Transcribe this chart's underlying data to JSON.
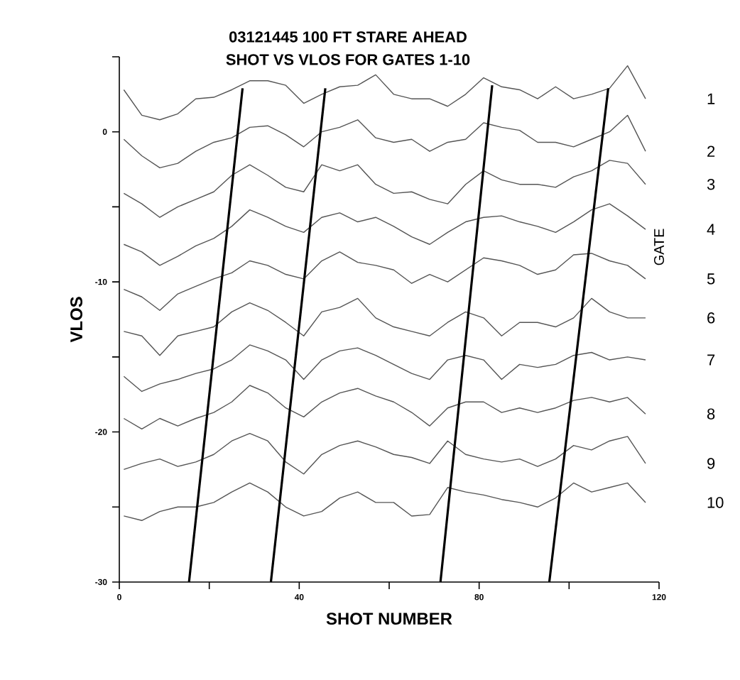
{
  "chart_data": {
    "type": "line",
    "title": "03121445 100 FT STARE AHEAD",
    "subtitle": "SHOT VS VLOS FOR GATES 1-10",
    "xlabel": "SHOT NUMBER",
    "ylabel": "VLOS",
    "legend_title": "GATE",
    "marker": "none",
    "xlim": [
      0,
      120
    ],
    "ylim": [
      -30,
      5
    ],
    "xticks": [
      0,
      {
        "value": 20,
        "label": null
      },
      40,
      {
        "value": 60,
        "label": null
      },
      80,
      {
        "value": 100,
        "label": null
      },
      120
    ],
    "yticks": [
      -30,
      {
        "value": -25,
        "label": null
      },
      -20,
      {
        "value": -15,
        "label": null
      },
      -10,
      {
        "value": -5,
        "label": null
      },
      0,
      {
        "value": 5,
        "label": null
      }
    ],
    "x": [
      1,
      5,
      9,
      13,
      17,
      21,
      25,
      29,
      33,
      37,
      41,
      45,
      49,
      53,
      57,
      61,
      65,
      69,
      73,
      77,
      81,
      85,
      89,
      93,
      97,
      101,
      105,
      109,
      113,
      117
    ],
    "series": [
      {
        "name": "1",
        "color": "#555555",
        "values": [
          2.8,
          1.1,
          0.8,
          1.2,
          2.2,
          2.3,
          2.8,
          3.4,
          3.4,
          3.1,
          1.9,
          2.5,
          3.0,
          3.1,
          3.8,
          2.5,
          2.2,
          2.2,
          1.7,
          2.5,
          3.6,
          3.0,
          2.8,
          2.2,
          3.0,
          2.2,
          2.5,
          2.9,
          4.4,
          2.2
        ]
      },
      {
        "name": "2",
        "color": "#555555",
        "values": [
          -0.5,
          -1.6,
          -2.4,
          -2.1,
          -1.3,
          -0.7,
          -0.4,
          0.3,
          0.4,
          -0.2,
          -1.0,
          0.0,
          0.3,
          0.8,
          -0.4,
          -0.7,
          -0.5,
          -1.3,
          -0.7,
          -0.5,
          0.6,
          0.3,
          0.1,
          -0.7,
          -0.7,
          -1.0,
          -0.5,
          0.0,
          1.1,
          -1.3
        ]
      },
      {
        "name": "3",
        "color": "#555555",
        "values": [
          -4.1,
          -4.8,
          -5.7,
          -5.0,
          -4.5,
          -4.0,
          -2.9,
          -2.2,
          -2.9,
          -3.7,
          -4.0,
          -2.2,
          -2.6,
          -2.2,
          -3.5,
          -4.1,
          -4.0,
          -4.5,
          -4.8,
          -3.5,
          -2.6,
          -3.2,
          -3.5,
          -3.5,
          -3.7,
          -3.0,
          -2.6,
          -1.9,
          -2.1,
          -3.5
        ]
      },
      {
        "name": "4",
        "color": "#555555",
        "values": [
          -7.5,
          -8.0,
          -8.9,
          -8.3,
          -7.6,
          -7.1,
          -6.3,
          -5.2,
          -5.7,
          -6.3,
          -6.7,
          -5.7,
          -5.4,
          -6.0,
          -5.7,
          -6.3,
          -7.0,
          -7.5,
          -6.7,
          -6.0,
          -5.7,
          -5.6,
          -6.0,
          -6.3,
          -6.7,
          -6.0,
          -5.2,
          -4.8,
          -5.6,
          -6.5
        ]
      },
      {
        "name": "5",
        "color": "#555555",
        "values": [
          -10.5,
          -11.0,
          -11.9,
          -10.8,
          -10.3,
          -9.8,
          -9.4,
          -8.6,
          -8.9,
          -9.5,
          -9.8,
          -8.6,
          -8.0,
          -8.7,
          -8.9,
          -9.2,
          -10.1,
          -9.5,
          -10.0,
          -9.2,
          -8.4,
          -8.6,
          -8.9,
          -9.5,
          -9.2,
          -8.2,
          -8.1,
          -8.6,
          -8.9,
          -9.8
        ]
      },
      {
        "name": "6",
        "color": "#555555",
        "values": [
          -13.3,
          -13.6,
          -14.9,
          -13.6,
          -13.3,
          -13.0,
          -12.0,
          -11.4,
          -11.9,
          -12.7,
          -13.6,
          -12.0,
          -11.7,
          -11.1,
          -12.4,
          -13.0,
          -13.3,
          -13.6,
          -12.7,
          -12.0,
          -12.4,
          -13.6,
          -12.7,
          -12.7,
          -13.0,
          -12.4,
          -11.1,
          -12.0,
          -12.4,
          -12.4
        ]
      },
      {
        "name": "7",
        "color": "#555555",
        "values": [
          -16.3,
          -17.3,
          -16.8,
          -16.5,
          -16.1,
          -15.8,
          -15.2,
          -14.2,
          -14.6,
          -15.2,
          -16.5,
          -15.2,
          -14.6,
          -14.4,
          -14.9,
          -15.5,
          -16.1,
          -16.5,
          -15.2,
          -14.9,
          -15.2,
          -16.5,
          -15.5,
          -15.7,
          -15.5,
          -14.9,
          -14.7,
          -15.2,
          -15.0,
          -15.2
        ]
      },
      {
        "name": "8",
        "color": "#555555",
        "values": [
          -19.1,
          -19.8,
          -19.1,
          -19.6,
          -19.1,
          -18.7,
          -18.0,
          -16.9,
          -17.4,
          -18.4,
          -19.0,
          -18.0,
          -17.4,
          -17.1,
          -17.6,
          -18.0,
          -18.7,
          -19.6,
          -18.4,
          -18.0,
          -18.0,
          -18.7,
          -18.4,
          -18.7,
          -18.4,
          -17.9,
          -17.7,
          -18.0,
          -17.7,
          -18.8
        ]
      },
      {
        "name": "9",
        "color": "#555555",
        "values": [
          -22.5,
          -22.1,
          -21.8,
          -22.3,
          -22.0,
          -21.5,
          -20.6,
          -20.1,
          -20.6,
          -22.0,
          -22.8,
          -21.5,
          -20.9,
          -20.6,
          -21.0,
          -21.5,
          -21.7,
          -22.1,
          -20.6,
          -21.5,
          -21.8,
          -22.0,
          -21.8,
          -22.3,
          -21.8,
          -20.9,
          -21.2,
          -20.6,
          -20.3,
          -22.1
        ]
      },
      {
        "name": "10",
        "color": "#555555",
        "values": [
          -25.6,
          -25.9,
          -25.3,
          -25.0,
          -25.0,
          -24.7,
          -24.0,
          -23.4,
          -24.0,
          -25.0,
          -25.6,
          -25.3,
          -24.4,
          -24.0,
          -24.7,
          -24.7,
          -25.6,
          -25.5,
          -23.7,
          -24.0,
          -24.2,
          -24.5,
          -24.7,
          -25.0,
          -24.4,
          -23.4,
          -24.0,
          -23.7,
          -23.4,
          -24.7
        ]
      },
      {
        "type": "line",
        "color": "#000000",
        "x": [
          27.4,
          15.5
        ],
        "values": [
          2.9,
          -30
        ]
      },
      {
        "type": "line",
        "color": "#000000",
        "x": [
          45.8,
          33.7
        ],
        "values": [
          2.9,
          -30
        ]
      },
      {
        "type": "line",
        "color": "#000000",
        "x": [
          82.9,
          71.4
        ],
        "values": [
          3.1,
          -30
        ]
      },
      {
        "type": "line",
        "color": "#000000",
        "x": [
          108.7,
          95.6
        ],
        "values": [
          2.9,
          -30
        ]
      }
    ]
  }
}
